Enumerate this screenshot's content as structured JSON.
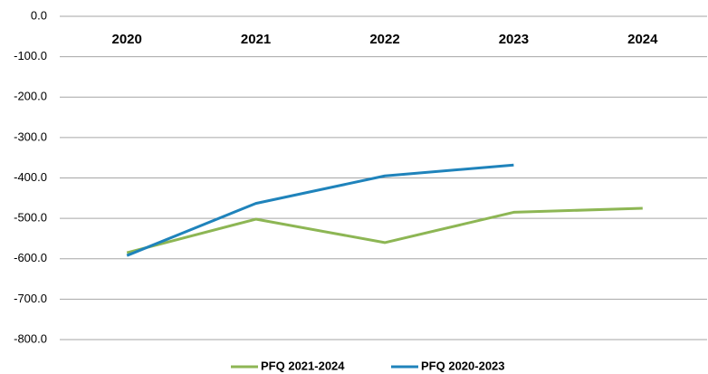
{
  "chart_data": {
    "type": "line",
    "categories": [
      "2020",
      "2021",
      "2022",
      "2023",
      "2024"
    ],
    "series": [
      {
        "name": "PFQ 2021-2024",
        "color": "#8db654",
        "values": [
          -585,
          -502,
          -560,
          -485,
          -475
        ]
      },
      {
        "name": "PFQ 2020-2023",
        "color": "#1f83bb",
        "values": [
          -592,
          -463,
          -395,
          -368,
          null
        ]
      }
    ],
    "ylim": [
      -800,
      0
    ],
    "yticks": [
      {
        "value": 0,
        "label": "0.0"
      },
      {
        "value": -100,
        "label": "-100.0"
      },
      {
        "value": -200,
        "label": "-200.0"
      },
      {
        "value": -300,
        "label": "-300.0"
      },
      {
        "value": -400,
        "label": "-400.0"
      },
      {
        "value": -500,
        "label": "-500.0"
      },
      {
        "value": -600,
        "label": "-600.0"
      },
      {
        "value": -700,
        "label": "-700.0"
      },
      {
        "value": -800,
        "label": "-800.0"
      }
    ],
    "grid": true,
    "legend": "bottom"
  }
}
